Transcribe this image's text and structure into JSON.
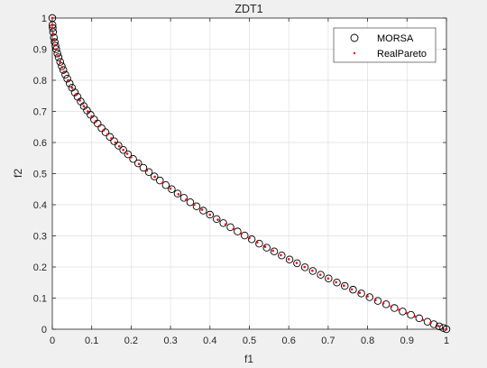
{
  "chart_data": {
    "type": "scatter",
    "title": "ZDT1",
    "xlabel": "f1",
    "ylabel": "f2",
    "xlim": [
      0,
      1
    ],
    "ylim": [
      0,
      1
    ],
    "xticks": [
      "0",
      "0.1",
      "0.2",
      "0.3",
      "0.4",
      "0.5",
      "0.6",
      "0.7",
      "0.8",
      "0.9",
      "1"
    ],
    "yticks": [
      "0",
      "0.1",
      "0.2",
      "0.3",
      "0.4",
      "0.5",
      "0.6",
      "0.7",
      "0.8",
      "0.9",
      "1"
    ],
    "grid": true,
    "legend_position": "top-right",
    "series": [
      {
        "name": "MORSA",
        "marker": "open-circle",
        "color": "#000000",
        "x": [
          0.0,
          0.0005,
          0.001,
          0.002,
          0.004,
          0.006,
          0.008,
          0.01,
          0.013,
          0.016,
          0.02,
          0.024,
          0.028,
          0.033,
          0.038,
          0.044,
          0.05,
          0.057,
          0.064,
          0.072,
          0.08,
          0.088,
          0.097,
          0.106,
          0.115,
          0.125,
          0.135,
          0.146,
          0.157,
          0.168,
          0.18,
          0.192,
          0.205,
          0.218,
          0.231,
          0.245,
          0.259,
          0.273,
          0.288,
          0.303,
          0.318,
          0.334,
          0.35,
          0.366,
          0.383,
          0.4,
          0.417,
          0.434,
          0.452,
          0.47,
          0.488,
          0.506,
          0.525,
          0.544,
          0.563,
          0.582,
          0.602,
          0.621,
          0.641,
          0.661,
          0.681,
          0.701,
          0.722,
          0.742,
          0.763,
          0.784,
          0.805,
          0.826,
          0.847,
          0.868,
          0.889,
          0.91,
          0.931,
          0.952,
          0.968,
          0.982,
          0.992,
          1.0
        ],
        "y": [
          1.0,
          0.978,
          0.968,
          0.955,
          0.937,
          0.923,
          0.911,
          0.9,
          0.886,
          0.874,
          0.859,
          0.845,
          0.833,
          0.818,
          0.805,
          0.79,
          0.776,
          0.761,
          0.747,
          0.732,
          0.717,
          0.703,
          0.689,
          0.674,
          0.661,
          0.646,
          0.633,
          0.618,
          0.604,
          0.59,
          0.576,
          0.562,
          0.547,
          0.533,
          0.519,
          0.505,
          0.491,
          0.478,
          0.463,
          0.45,
          0.436,
          0.422,
          0.408,
          0.395,
          0.381,
          0.368,
          0.354,
          0.341,
          0.328,
          0.314,
          0.301,
          0.289,
          0.275,
          0.262,
          0.25,
          0.237,
          0.224,
          0.212,
          0.199,
          0.187,
          0.175,
          0.163,
          0.15,
          0.139,
          0.127,
          0.115,
          0.103,
          0.091,
          0.08,
          0.068,
          0.057,
          0.046,
          0.035,
          0.024,
          0.016,
          0.009,
          0.004,
          0.0
        ]
      },
      {
        "name": "RealPareto",
        "marker": "dot",
        "color": "#ff0000",
        "x": [
          0.0,
          0.0005,
          0.001,
          0.0025,
          0.005,
          0.0075,
          0.01,
          0.015,
          0.02,
          0.025,
          0.03,
          0.04,
          0.05,
          0.06,
          0.07,
          0.08,
          0.09,
          0.1,
          0.11,
          0.12,
          0.13,
          0.14,
          0.15,
          0.16,
          0.17,
          0.18,
          0.19,
          0.2,
          0.22,
          0.24,
          0.26,
          0.28,
          0.3,
          0.32,
          0.34,
          0.36,
          0.38,
          0.4,
          0.42,
          0.44,
          0.46,
          0.48,
          0.5,
          0.52,
          0.54,
          0.56,
          0.58,
          0.6,
          0.62,
          0.64,
          0.66,
          0.68,
          0.7,
          0.72,
          0.74,
          0.76,
          0.78,
          0.8,
          0.82,
          0.84,
          0.86,
          0.88,
          0.9,
          0.92,
          0.94,
          0.96,
          0.98,
          1.0
        ],
        "y": [
          1.0,
          0.978,
          0.968,
          0.95,
          0.929,
          0.913,
          0.9,
          0.878,
          0.859,
          0.842,
          0.827,
          0.8,
          0.776,
          0.755,
          0.735,
          0.717,
          0.7,
          0.684,
          0.668,
          0.654,
          0.639,
          0.626,
          0.613,
          0.6,
          0.588,
          0.576,
          0.564,
          0.553,
          0.531,
          0.51,
          0.49,
          0.471,
          0.452,
          0.434,
          0.417,
          0.4,
          0.384,
          0.368,
          0.352,
          0.337,
          0.322,
          0.307,
          0.293,
          0.279,
          0.265,
          0.252,
          0.238,
          0.225,
          0.213,
          0.2,
          0.188,
          0.175,
          0.163,
          0.151,
          0.14,
          0.128,
          0.117,
          0.106,
          0.094,
          0.083,
          0.073,
          0.062,
          0.051,
          0.041,
          0.03,
          0.02,
          0.01,
          0.0
        ]
      }
    ]
  }
}
